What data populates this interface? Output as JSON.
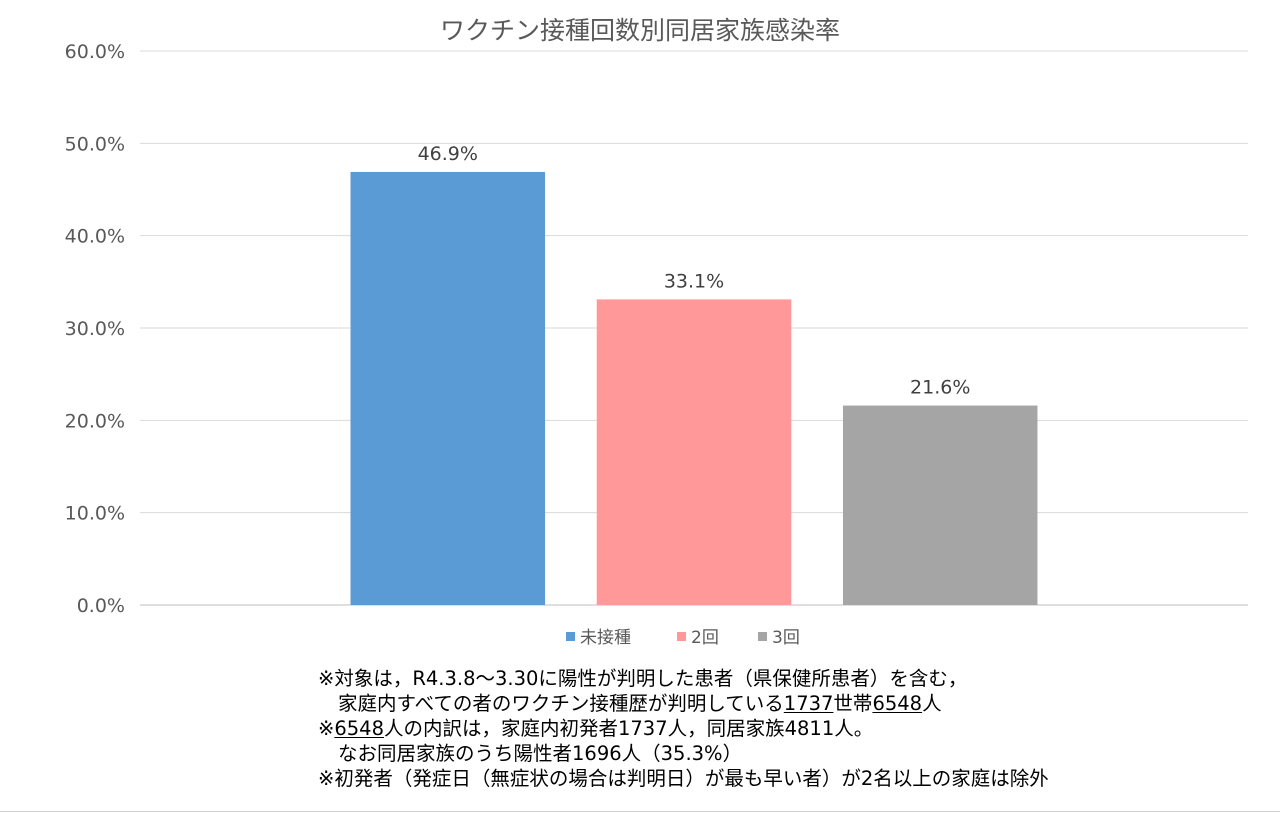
{
  "chart_data": {
    "type": "bar",
    "title": "ワクチン接種回数別同居家族感染率",
    "categories": [
      "未接種",
      "2回",
      "3回"
    ],
    "values": [
      46.9,
      33.1,
      21.6
    ],
    "data_labels": [
      "46.9%",
      "33.1%",
      "21.6%"
    ],
    "colors": [
      "#5b9bd5",
      "#ff9999",
      "#a5a5a5"
    ],
    "ylim": [
      0,
      60
    ],
    "yticks": [
      "0.0%",
      "10.0%",
      "20.0%",
      "30.0%",
      "40.0%",
      "50.0%",
      "60.0%"
    ],
    "grid": true,
    "legend_position": "bottom",
    "legend": [
      "未接種",
      "2回",
      "3回"
    ]
  },
  "notes": {
    "l1": "※対象は，R4.3.8～3.30に陽性が判明した患者（県保健所患者）を含む，",
    "l2a": "家庭内すべての者のワクチン接種歴が判明している",
    "l2b": "1737",
    "l2c": "世帯",
    "l2d": "6548",
    "l2e": "人",
    "l3a": "※",
    "l3b": "6548",
    "l3c": "人の内訳は，家庭内初発者1737人，同居家族4811人。",
    "l4": "なお同居家族のうち陽性者1696人（35.3%）",
    "l5": "※初発者（発症日（無症状の場合は判明日）が最も早い者）が2名以上の家庭は除外"
  }
}
